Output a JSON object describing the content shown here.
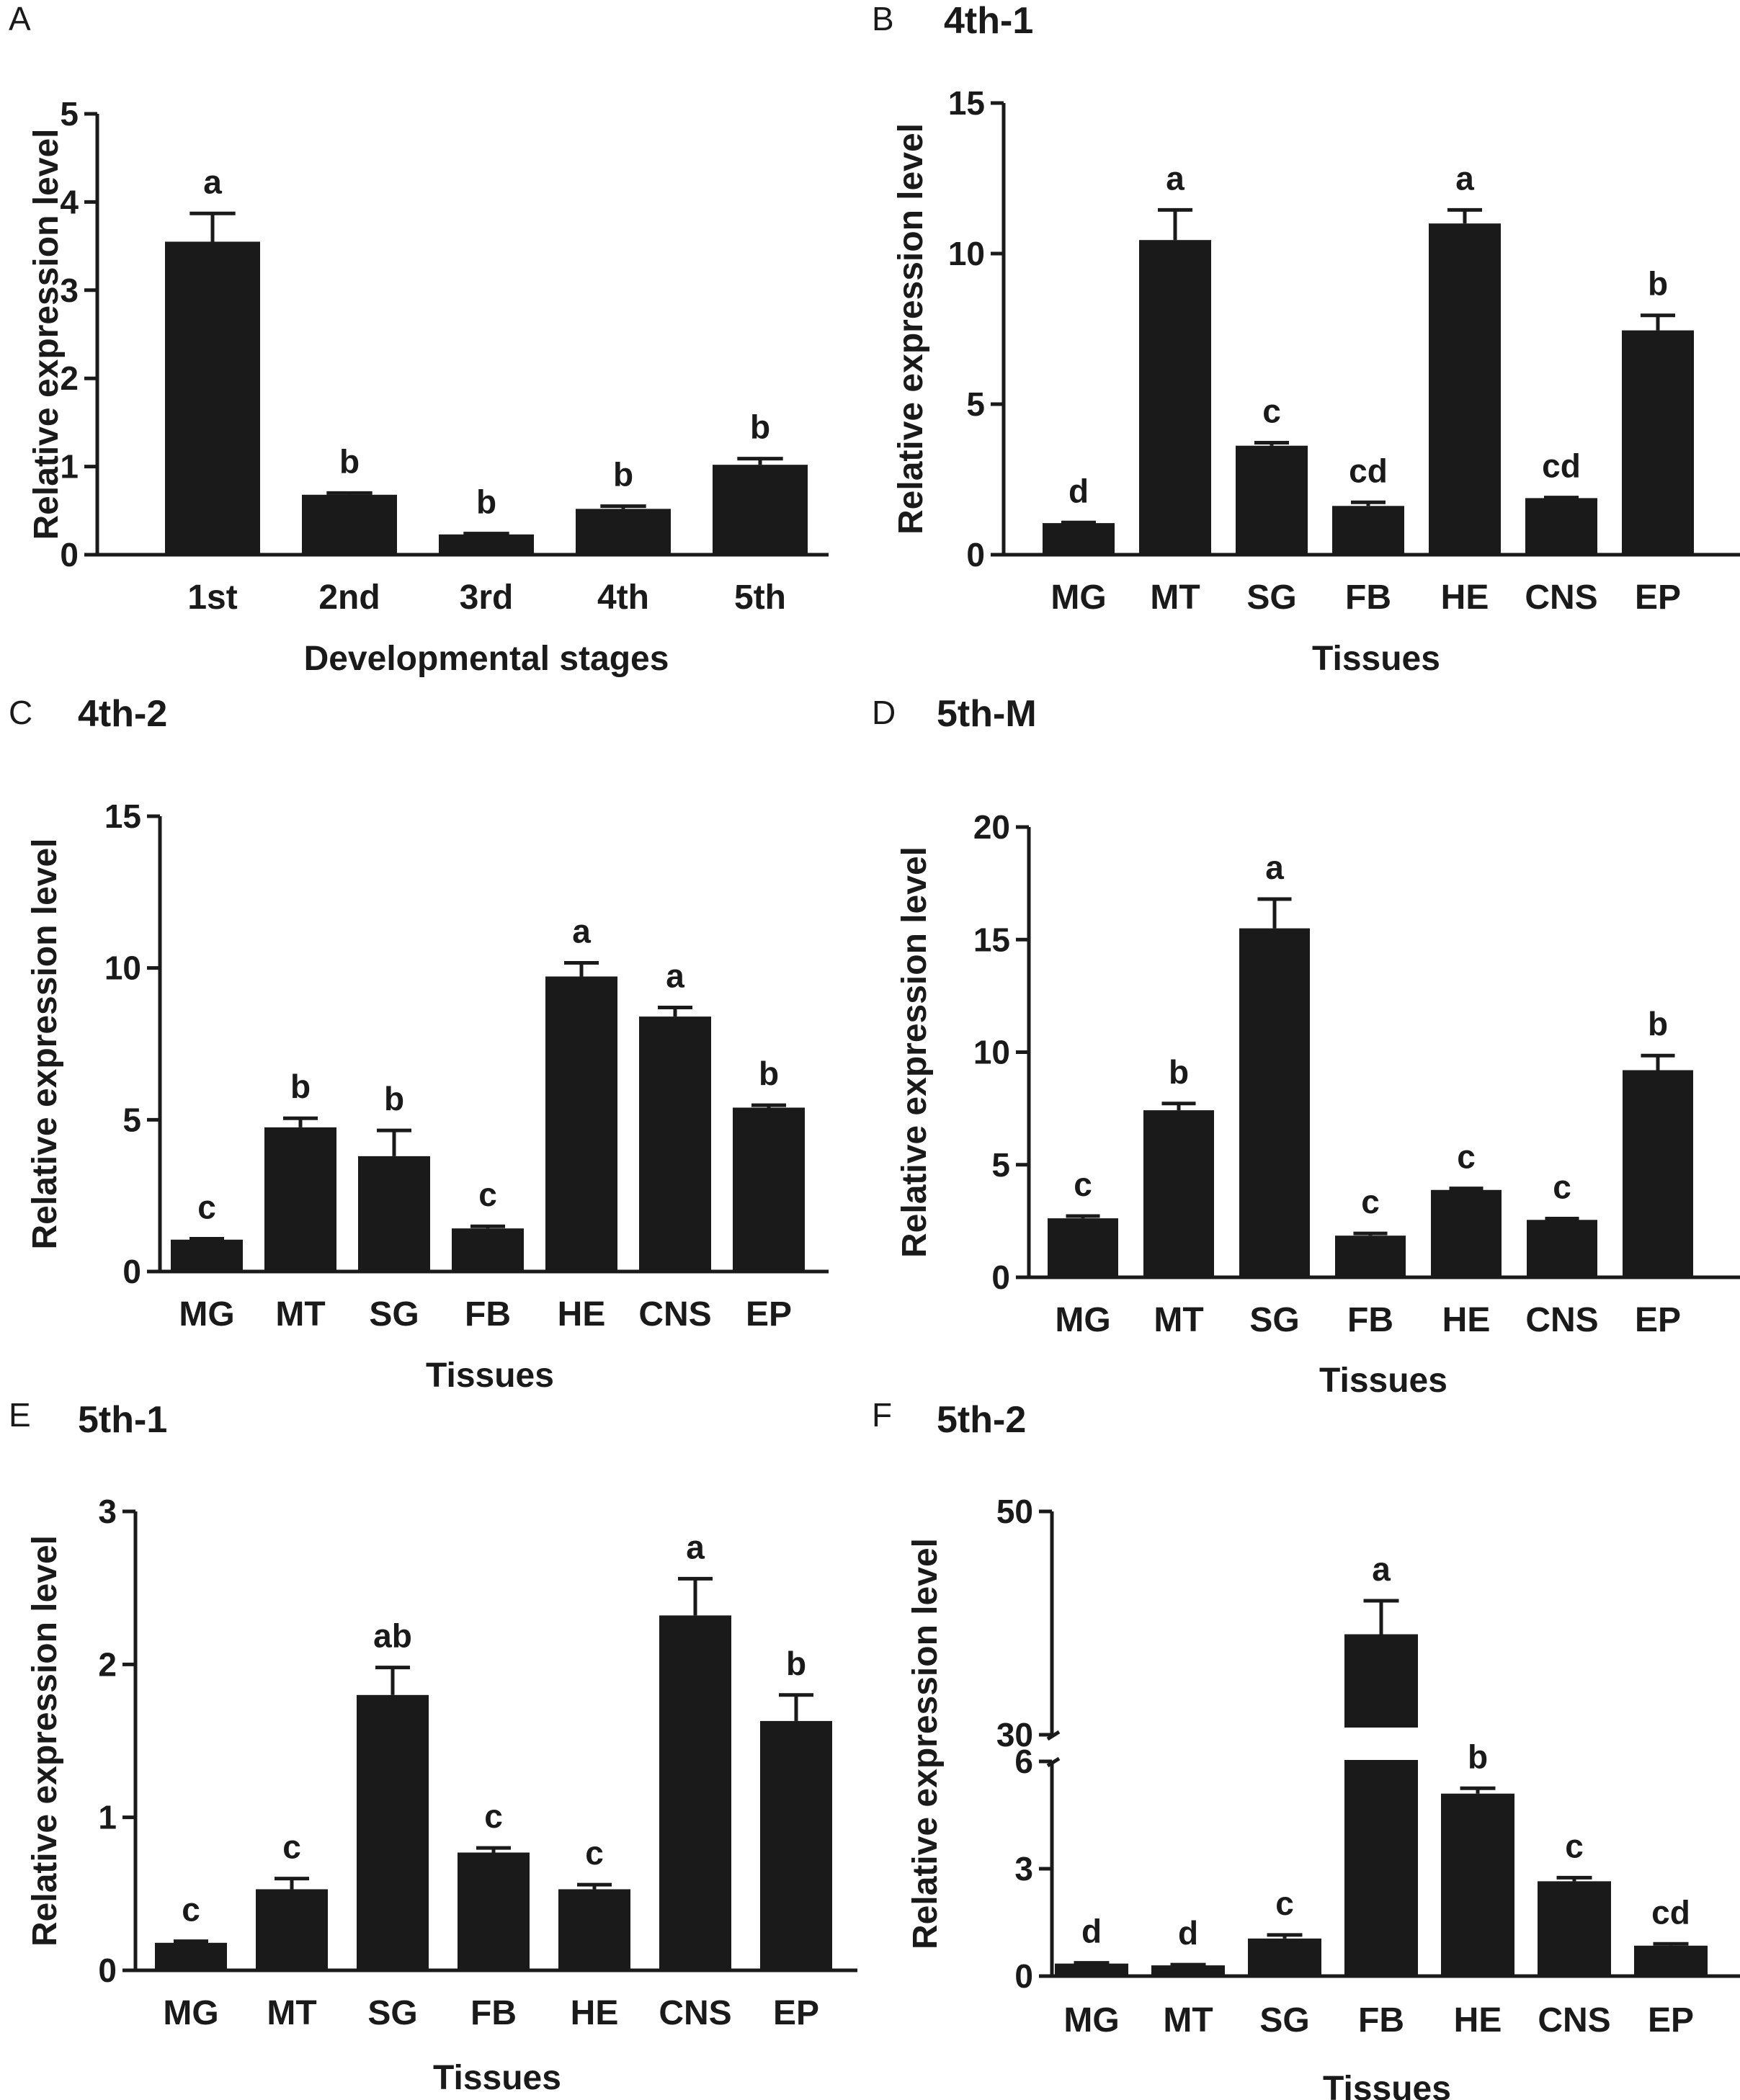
{
  "colors": {
    "bar": "#1a1a1a",
    "background": "#ffffff"
  },
  "chart_data": [
    {
      "id": "A",
      "letter": "A",
      "title": "",
      "type": "bar",
      "categories": [
        "1st",
        "2nd",
        "3rd",
        "4th",
        "5th"
      ],
      "values": [
        3.55,
        0.68,
        0.23,
        0.52,
        1.02
      ],
      "errors": [
        0.32,
        0.02,
        0.01,
        0.03,
        0.07
      ],
      "significance": [
        "a",
        "b",
        "b",
        "b",
        "b"
      ],
      "yticks": [
        "0",
        "1",
        "2",
        "3",
        "4",
        "5"
      ],
      "ylim": [
        0,
        5
      ],
      "xlabel": "Developmental stages",
      "ylabel": "Relative expression level"
    },
    {
      "id": "B",
      "letter": "B",
      "title": "4th-1",
      "type": "bar",
      "categories": [
        "MG",
        "MT",
        "SG",
        "FB",
        "HE",
        "CNS",
        "EP"
      ],
      "values": [
        1.05,
        10.45,
        3.62,
        1.62,
        11.0,
        1.88,
        7.45
      ],
      "errors": [
        0.02,
        1.0,
        0.1,
        0.12,
        0.45,
        0.02,
        0.5
      ],
      "significance": [
        "d",
        "a",
        "c",
        "cd",
        "a",
        "cd",
        "b"
      ],
      "yticks": [
        "0",
        "5",
        "10",
        "15"
      ],
      "ylim": [
        0,
        15
      ],
      "xlabel": "Tissues",
      "ylabel": "Relative expression level"
    },
    {
      "id": "C",
      "letter": "C",
      "title": "4th-2",
      "type": "bar",
      "categories": [
        "MG",
        "MT",
        "SG",
        "FB",
        "HE",
        "CNS",
        "EP"
      ],
      "values": [
        1.05,
        4.75,
        3.8,
        1.42,
        9.72,
        8.4,
        5.4
      ],
      "errors": [
        0.03,
        0.3,
        0.85,
        0.07,
        0.45,
        0.3,
        0.08
      ],
      "significance": [
        "c",
        "b",
        "b",
        "c",
        "a",
        "a",
        "b"
      ],
      "yticks": [
        "0",
        "5",
        "10",
        "15"
      ],
      "ylim": [
        0,
        15
      ],
      "xlabel": "Tissues",
      "ylabel": "Relative expression level"
    },
    {
      "id": "D",
      "letter": "D",
      "title": "5th-M",
      "type": "bar",
      "categories": [
        "MG",
        "MT",
        "SG",
        "FB",
        "HE",
        "CNS",
        "EP"
      ],
      "values": [
        2.62,
        7.42,
        15.5,
        1.85,
        3.88,
        2.55,
        9.2
      ],
      "errors": [
        0.1,
        0.3,
        1.3,
        0.1,
        0.07,
        0.06,
        0.65
      ],
      "significance": [
        "c",
        "b",
        "a",
        "c",
        "c",
        "c",
        "b"
      ],
      "yticks": [
        "0",
        "5",
        "10",
        "15",
        "20"
      ],
      "ylim": [
        0,
        20
      ],
      "xlabel": "Tissues",
      "ylabel": "Relative expression level"
    },
    {
      "id": "E",
      "letter": "E",
      "title": "5th-1",
      "type": "bar",
      "categories": [
        "MG",
        "MT",
        "SG",
        "FB",
        "HE",
        "CNS",
        "EP"
      ],
      "values": [
        0.18,
        0.53,
        1.8,
        0.77,
        0.53,
        2.32,
        1.63
      ],
      "errors": [
        0.01,
        0.07,
        0.18,
        0.03,
        0.03,
        0.24,
        0.17
      ],
      "significance": [
        "c",
        "c",
        "ab",
        "c",
        "c",
        "a",
        "b"
      ],
      "yticks": [
        "0",
        "1",
        "2",
        "3"
      ],
      "ylim": [
        0,
        3
      ],
      "xlabel": "Tissues",
      "ylabel": "Relative expression level"
    },
    {
      "id": "F",
      "letter": "F",
      "title": "5th-2",
      "type": "bar",
      "categories": [
        "MG",
        "MT",
        "SG",
        "FB",
        "HE",
        "CNS",
        "EP"
      ],
      "values": [
        0.35,
        0.3,
        1.05,
        39.0,
        5.1,
        2.65,
        0.85
      ],
      "errors": [
        0.02,
        0.02,
        0.1,
        3.0,
        0.15,
        0.1,
        0.05
      ],
      "significance": [
        "d",
        "d",
        "c",
        "a",
        "b",
        "c",
        "cd"
      ],
      "yticks": [
        "0",
        "3",
        "6",
        "30",
        "50"
      ],
      "ylim": [
        0,
        50
      ],
      "axis_break": {
        "lower": [
          0,
          6
        ],
        "upper": [
          30,
          50
        ]
      },
      "xlabel": "Tissues",
      "ylabel": "Relative expression level"
    }
  ]
}
